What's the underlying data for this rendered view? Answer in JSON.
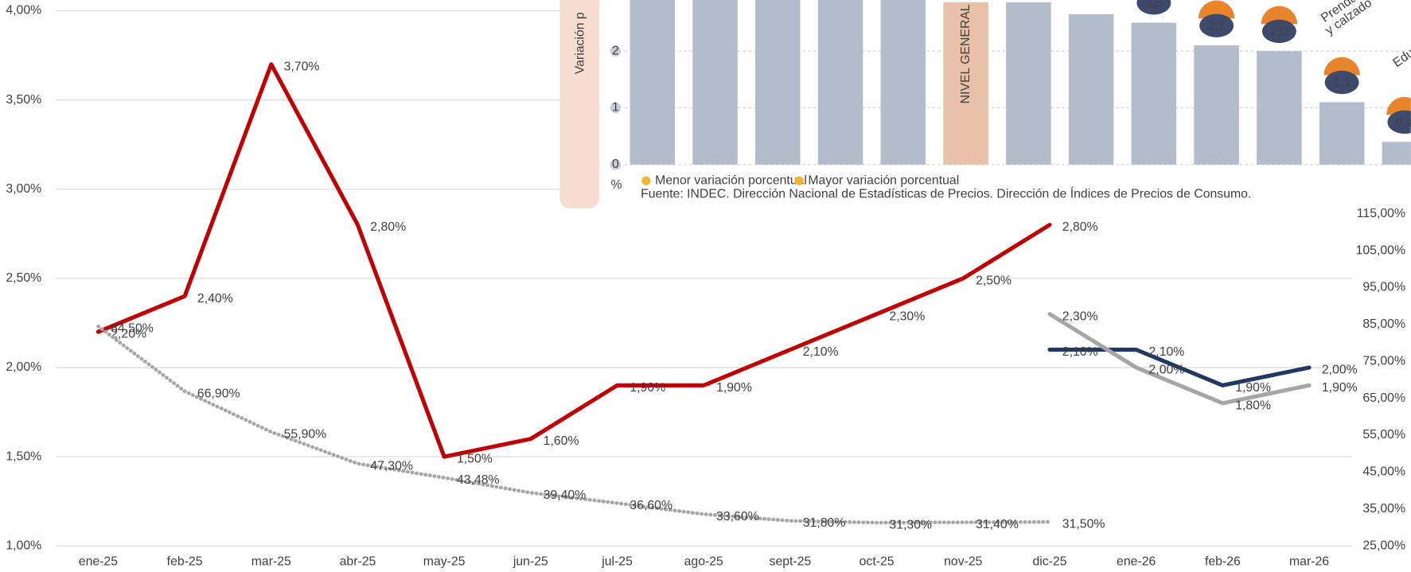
{
  "chart_data": {
    "type": "line",
    "categories": [
      "ene-25",
      "feb-25",
      "mar-25",
      "abr-25",
      "may-25",
      "jun-25",
      "jul-25",
      "ago-25",
      "sept-25",
      "oct-25",
      "nov-25",
      "dic-25",
      "ene-26",
      "feb-26",
      "mar-26"
    ],
    "ylim": [
      1,
      4
    ],
    "yticks": [
      {
        "value": 1,
        "label": "1,00%"
      },
      {
        "value": 1.5,
        "label": "1,50%"
      },
      {
        "value": 2,
        "label": "2,00%"
      },
      {
        "value": 2.5,
        "label": "2,50%"
      },
      {
        "value": 3,
        "label": "3,00%"
      },
      {
        "value": 3.5,
        "label": "3,50%"
      },
      {
        "value": 4,
        "label": "4,00%"
      }
    ],
    "y2lim": [
      25,
      170
    ],
    "y2ticks": [
      {
        "value": 25,
        "label": "25,00%"
      },
      {
        "value": 35,
        "label": "35,00%"
      },
      {
        "value": 45,
        "label": "45,00%"
      },
      {
        "value": 55,
        "label": "55,00%"
      },
      {
        "value": 65,
        "label": "65,00%"
      },
      {
        "value": 75,
        "label": "75,00%"
      },
      {
        "value": 85,
        "label": "85,00%"
      },
      {
        "value": 95,
        "label": "95,00%"
      },
      {
        "value": 105,
        "label": "105,00%"
      },
      {
        "value": 115,
        "label": "115,00%"
      }
    ],
    "grid": true,
    "series": [
      {
        "color": "#c00000",
        "style": "solid",
        "values": [
          2.2,
          2.4,
          3.7,
          2.8,
          1.5,
          1.6,
          1.9,
          1.9,
          2.1,
          2.3,
          2.5,
          2.8,
          null,
          null,
          null
        ],
        "value_labels": [
          "2,20%",
          "2,40%",
          "3,70%",
          "2,80%",
          "1,50%",
          "1,60%",
          "1,90%",
          "1,90%",
          "2,10%",
          "2,30%",
          "2,50%",
          "2,80%",
          null,
          null,
          null
        ]
      },
      {
        "color": "#a6a6a6",
        "style": "dotted",
        "axis": "y2",
        "values": [
          84.5,
          66.9,
          55.9,
          47.3,
          43.48,
          39.4,
          36.6,
          33.6,
          31.8,
          31.3,
          31.4,
          31.5,
          null,
          null,
          null
        ],
        "value_labels": [
          "84,50%",
          "66,90%",
          "55,90%",
          "47,30%",
          "43,48%",
          "39,40%",
          "36,60%",
          "33,60%",
          "31,80%",
          "31,30%",
          "31,40%",
          "31,50%",
          null,
          null,
          null
        ]
      },
      {
        "color": "#1f3864",
        "style": "solid",
        "values": [
          null,
          null,
          null,
          null,
          null,
          null,
          null,
          null,
          null,
          null,
          null,
          2.1,
          2.1,
          1.9,
          2.0
        ],
        "value_labels": [
          null,
          null,
          null,
          null,
          null,
          null,
          null,
          null,
          null,
          null,
          null,
          "2,10%",
          "2,10%",
          "1,90%",
          "2,00%"
        ]
      },
      {
        "color": "#a6a6a6",
        "style": "solid",
        "values": [
          null,
          null,
          null,
          null,
          null,
          null,
          null,
          null,
          null,
          null,
          null,
          2.3,
          2.0,
          1.8,
          1.9
        ],
        "value_labels": [
          null,
          null,
          null,
          null,
          null,
          null,
          null,
          null,
          null,
          null,
          null,
          "2,30%",
          "2,00%",
          "1,80%",
          "1,90%"
        ]
      }
    ]
  },
  "inset": {
    "y_label": "Variación p",
    "unit": "%",
    "ylim": [
      0,
      2.9
    ],
    "yticks": [
      0,
      1,
      2
    ],
    "categories": [
      null,
      null,
      null,
      null,
      null,
      "NIVEL GENERAL",
      null,
      null,
      null,
      null,
      null,
      null,
      null
    ],
    "values": [
      3.2,
      3.1,
      3.1,
      3.0,
      3.0,
      2.86,
      2.86,
      2.65,
      2.5,
      2.1,
      2.0,
      1.1,
      0.4
    ],
    "value_labels": [
      null,
      null,
      null,
      null,
      null,
      null,
      null,
      null,
      "2,5",
      "2,1",
      "2,0",
      "1,1",
      "0,4"
    ],
    "colors": [
      "#b3bccb",
      "#b3bccb",
      "#b3bccb",
      "#b3bccb",
      "#b3bccb",
      "#e8c1a8",
      "#b3bccb",
      "#b3bccb",
      "#b3bccb",
      "#b3bccb",
      "#b3bccb",
      "#b3bccb",
      "#b3bccb"
    ],
    "legend": [
      "Menor variación porcentual",
      "Mayor variación porcentual"
    ],
    "source": "Fuente: INDEC. Dirección Nacional de Estadísticas de Precios. Dirección de Índices de Precios de Consumo.",
    "annotations": [
      "Prendas de",
      "y calzado",
      "Edu"
    ]
  }
}
